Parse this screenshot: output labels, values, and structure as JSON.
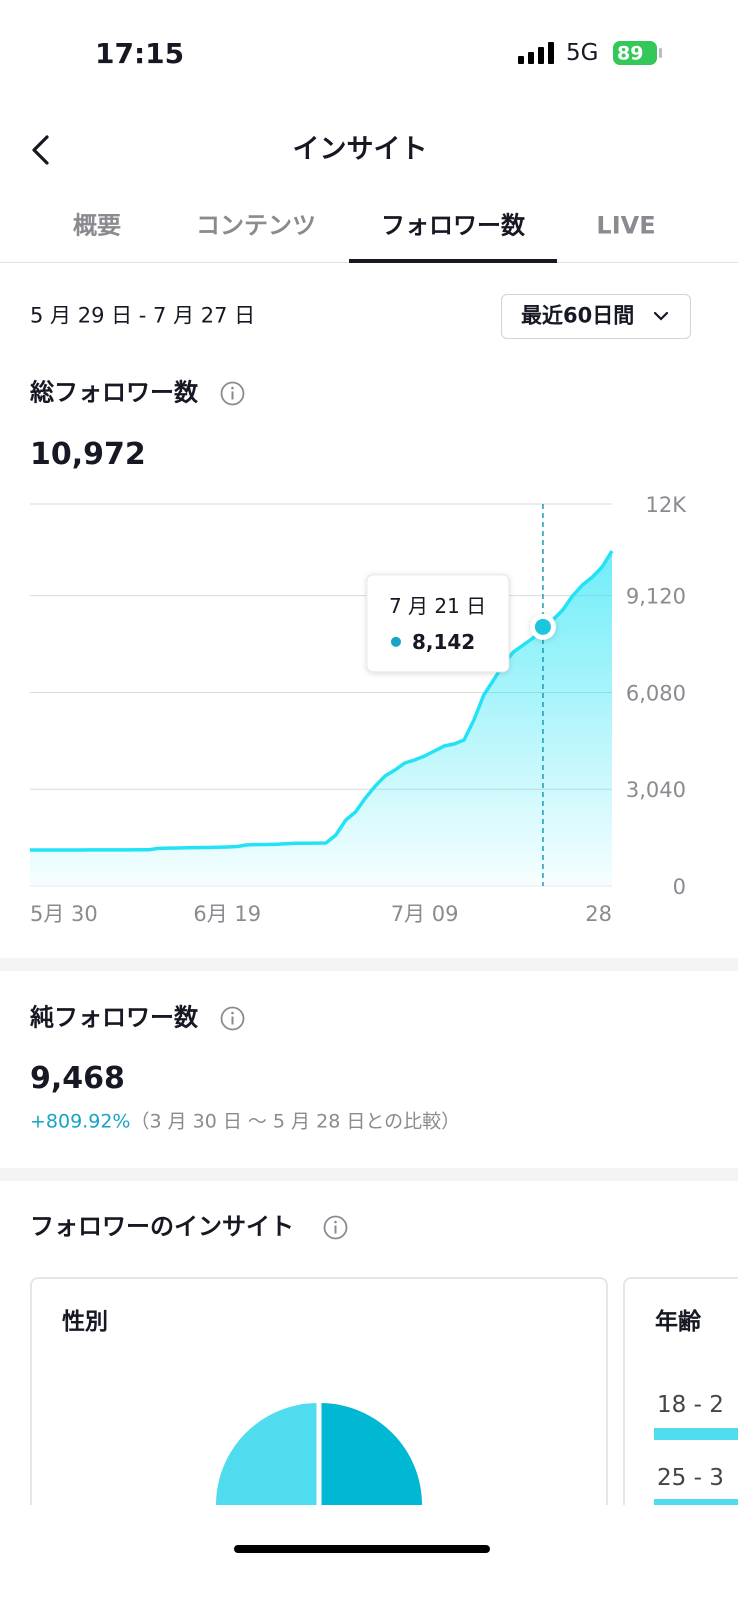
{
  "status_bar": {
    "time": "17:15",
    "network": "5G",
    "battery": "89"
  },
  "header": {
    "title": "インサイト"
  },
  "tabs": [
    "概要",
    "コンテンツ",
    "フォロワー数",
    "LIVE"
  ],
  "date_range": "5 月 29 日 - 7 月 27 日",
  "period_dropdown": "最近60日間",
  "total_followers": {
    "label": "総フォロワー数",
    "value": "10,972"
  },
  "chart_data": {
    "type": "line",
    "color": "#22e3f5",
    "grid": true,
    "categories": [
      "5月 30",
      null,
      null,
      null,
      null,
      null,
      null,
      null,
      null,
      null,
      null,
      null,
      null,
      null,
      null,
      null,
      null,
      null,
      null,
      null,
      "6月 19",
      null,
      null,
      null,
      null,
      null,
      null,
      null,
      null,
      null,
      null,
      null,
      null,
      null,
      null,
      null,
      null,
      null,
      null,
      null,
      "7月 09",
      null,
      null,
      null,
      null,
      null,
      null,
      null,
      null,
      null,
      null,
      null,
      null,
      null,
      null,
      null,
      null,
      null,
      null,
      "28"
    ],
    "values": [
      1130,
      1130,
      1131,
      1131,
      1132,
      1132,
      1133,
      1133,
      1134,
      1135,
      1135,
      1136,
      1138,
      1180,
      1190,
      1195,
      1200,
      1205,
      1210,
      1215,
      1225,
      1240,
      1290,
      1300,
      1305,
      1310,
      1330,
      1340,
      1345,
      1348,
      1350,
      1600,
      2070,
      2325,
      2765,
      3140,
      3455,
      3645,
      3865,
      3960,
      4085,
      4240,
      4400,
      4460,
      4585,
      5215,
      6000,
      6470,
      6975,
      7350,
      7570,
      7790,
      8142,
      8355,
      8670,
      9110,
      9455,
      9705,
      10020,
      10525
    ],
    "value_labels": [
      null,
      null,
      null,
      null,
      null,
      null,
      null,
      null,
      null,
      null,
      null,
      null,
      null,
      null,
      null,
      null,
      null,
      null,
      null,
      null,
      null,
      null,
      null,
      null,
      null,
      null,
      null,
      null,
      null,
      null,
      null,
      null,
      null,
      null,
      null,
      null,
      null,
      null,
      null,
      null,
      null,
      null,
      null,
      null,
      null,
      null,
      null,
      null,
      null,
      null,
      null,
      null,
      "8,142",
      null,
      null,
      null,
      null,
      null,
      null,
      null
    ],
    "tooltip_title": "7 月 21 日",
    "ylim": [
      0,
      12000
    ],
    "yticks": [
      0,
      {
        "value": 3040,
        "label": "3,040"
      },
      {
        "value": 6080,
        "label": "6,080"
      },
      {
        "value": 9120,
        "label": "9,120"
      },
      {
        "value": 12000,
        "label": "12K"
      }
    ]
  },
  "net_followers": {
    "label": "純フォロワー数",
    "value": "9,468",
    "change": "+809.92%",
    "comparison": "（3 月 30 日 〜 5 月 28 日との比較）"
  },
  "follower_insights": {
    "title": "フォロワーのインサイト",
    "gender": {
      "title": "性別"
    },
    "age": {
      "title": "年齢",
      "groups": [
        "18 - 2",
        "25 - 3"
      ]
    }
  }
}
